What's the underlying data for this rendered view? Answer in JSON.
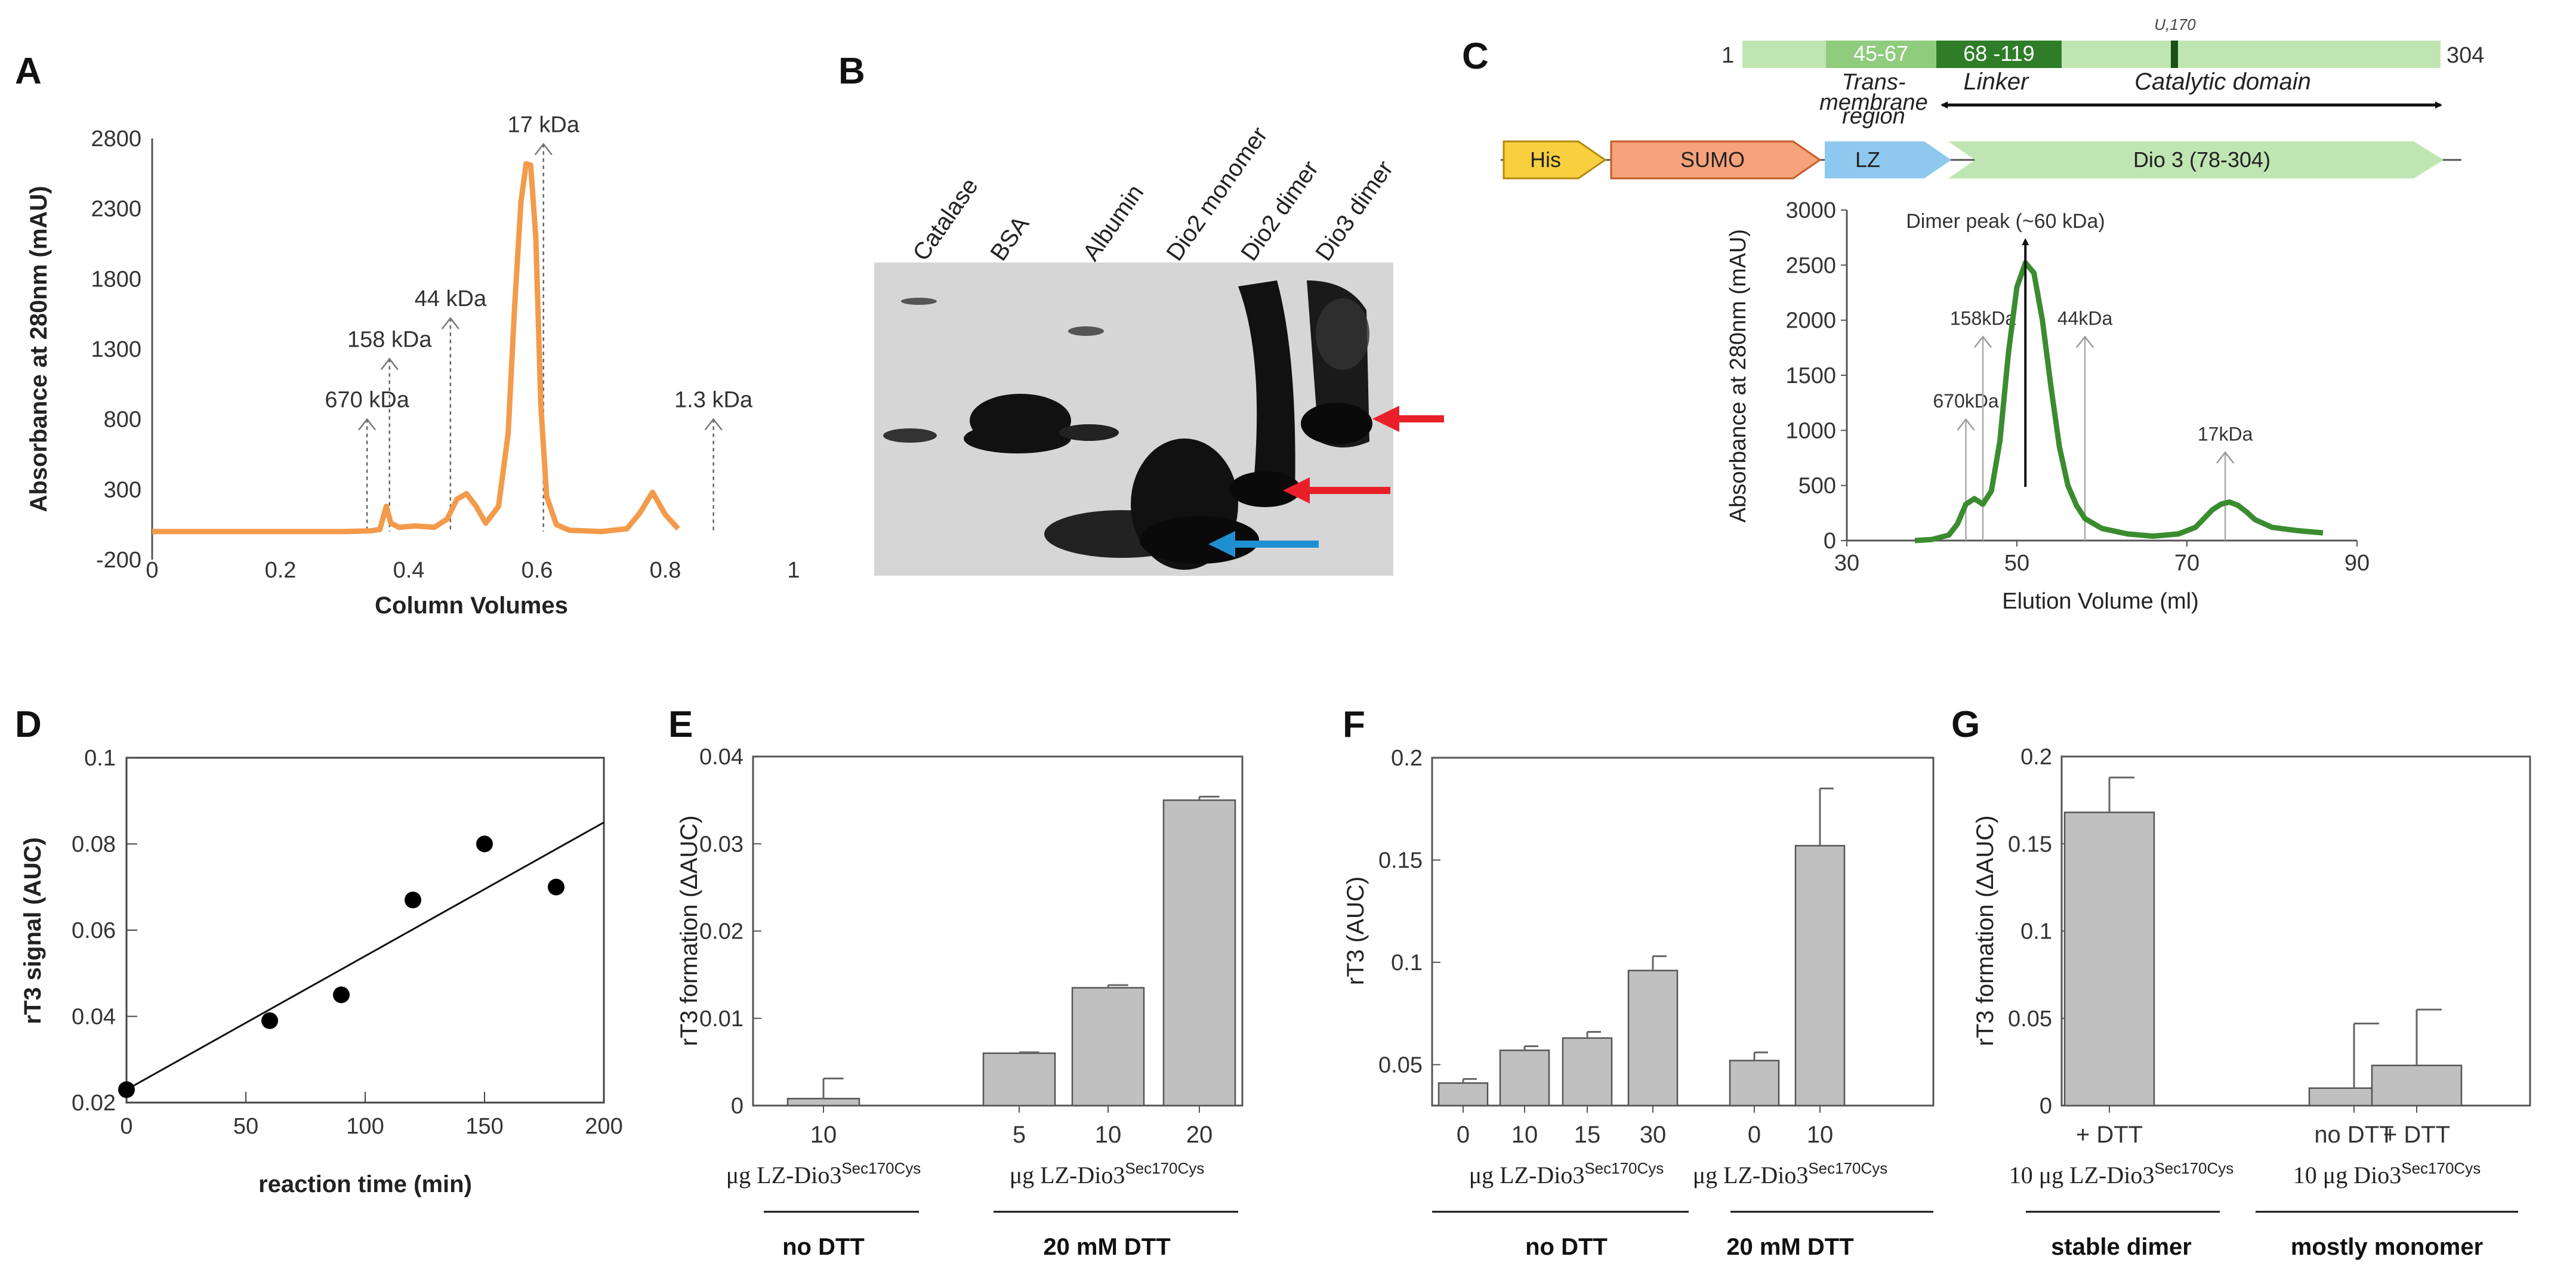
{
  "panels": {
    "A": "A",
    "B": "B",
    "C": "C",
    "D": "D",
    "E": "E",
    "F": "F",
    "G": "G"
  },
  "colors": {
    "orange": "#f39a4b",
    "green": "#3a8c2f",
    "bar": "#c0c0c0",
    "red": "#e8202a",
    "blue": "#1e90d2"
  },
  "chart_data": [
    {
      "id": "A",
      "type": "line",
      "xlabel": "Column Volumes",
      "ylabel": "Absorbance at 280nm (mAU)",
      "xlim": [
        0,
        1
      ],
      "ylim": [
        -200,
        2800
      ],
      "xticks": [
        "0",
        "0.2",
        "0.4",
        "0.6",
        "0.8",
        "1"
      ],
      "yticks": [
        "-200",
        "300",
        "800",
        "1300",
        "1800",
        "2300",
        "2800"
      ],
      "x": [
        0,
        0.1,
        0.2,
        0.3,
        0.34,
        0.355,
        0.365,
        0.372,
        0.385,
        0.41,
        0.44,
        0.46,
        0.475,
        0.49,
        0.505,
        0.52,
        0.54,
        0.555,
        0.565,
        0.575,
        0.583,
        0.59,
        0.598,
        0.606,
        0.615,
        0.63,
        0.65,
        0.7,
        0.74,
        0.76,
        0.78,
        0.8,
        0.82
      ],
      "y": [
        0,
        0,
        0,
        0,
        5,
        15,
        180,
        60,
        30,
        40,
        30,
        90,
        230,
        270,
        180,
        60,
        180,
        700,
        1600,
        2350,
        2620,
        2610,
        2100,
        900,
        250,
        50,
        10,
        0,
        20,
        130,
        280,
        120,
        20
      ],
      "markers": [
        {
          "label": "670 kDa",
          "x": 0.335,
          "top": 800
        },
        {
          "label": "158 kDa",
          "x": 0.37,
          "top": 1230
        },
        {
          "label": "44 kDa",
          "x": 0.465,
          "top": 1520
        },
        {
          "label": "17 kDa",
          "x": 0.61,
          "top": 2760
        },
        {
          "label": "1.3 kDa",
          "x": 0.875,
          "top": 800
        }
      ]
    },
    {
      "id": "C",
      "type": "line",
      "xlabel": "Elution Volume (ml)",
      "ylabel": "Absorbance at 280nm (mAU)",
      "xlim": [
        30,
        90
      ],
      "ylim": [
        0,
        3000
      ],
      "xticks": [
        "30",
        "50",
        "70",
        "90"
      ],
      "yticks": [
        "0",
        "500",
        "1000",
        "1500",
        "2000",
        "2500",
        "3000"
      ],
      "x": [
        38,
        40,
        42,
        43,
        44,
        45,
        46,
        47,
        48,
        49,
        50,
        51,
        52,
        53,
        54,
        55,
        56,
        57,
        58,
        60,
        63,
        66,
        69,
        71,
        72,
        73,
        74,
        75,
        76,
        77,
        78,
        80,
        83,
        86
      ],
      "y": [
        0,
        10,
        50,
        150,
        330,
        380,
        330,
        450,
        900,
        1700,
        2300,
        2520,
        2430,
        2000,
        1400,
        850,
        500,
        320,
        200,
        110,
        60,
        40,
        60,
        120,
        200,
        280,
        330,
        350,
        320,
        260,
        190,
        120,
        90,
        70
      ],
      "peak_label": "Dimer peak (~60 kDa)",
      "peak_x": 51,
      "markers": [
        {
          "label": "670kDa",
          "x": 44,
          "top": 1100
        },
        {
          "label": "158kDa",
          "x": 46,
          "top": 1850
        },
        {
          "label": "44kDa",
          "x": 58,
          "top": 1850
        },
        {
          "label": "17kDa",
          "x": 74.5,
          "top": 800
        }
      ]
    },
    {
      "id": "D",
      "type": "scatter",
      "xlabel": "reaction time (min)",
      "ylabel": "rT3 signal (AUC)",
      "xlim": [
        0,
        200
      ],
      "ylim": [
        0.02,
        0.1
      ],
      "xticks": [
        "0",
        "50",
        "100",
        "150",
        "200"
      ],
      "yticks": [
        "0.02",
        "0.04",
        "0.06",
        "0.08",
        "0.1"
      ],
      "x": [
        0,
        60,
        90,
        120,
        150,
        180
      ],
      "y": [
        0.023,
        0.039,
        0.045,
        0.067,
        0.08,
        0.07
      ],
      "fit": {
        "x": [
          0,
          200
        ],
        "y": [
          0.023,
          0.085
        ]
      }
    },
    {
      "id": "E",
      "type": "bar",
      "ylabel": "rT3 formation (ΔAUC)",
      "ylim": [
        0,
        0.04
      ],
      "yticks": [
        "0",
        "0.01",
        "0.02",
        "0.03",
        "0.04"
      ],
      "categories": [
        "10",
        "5",
        "10",
        "20"
      ],
      "values": [
        0.0008,
        0.006,
        0.0135,
        0.035
      ],
      "errors": [
        0.0023,
        0.0001,
        0.0003,
        0.0004
      ],
      "groups": [
        {
          "unit": "μg LZ-Dio3",
          "sup": "Sec170Cys",
          "condition": "no DTT"
        },
        {
          "unit": "μg LZ-Dio3",
          "sup": "Sec170Cys",
          "condition": "20 mM DTT"
        }
      ]
    },
    {
      "id": "F",
      "type": "bar",
      "ylabel": "rT3 (AUC)",
      "ylim": [
        0.03,
        0.2
      ],
      "yticks": [
        "0.05",
        "0.1",
        "0.15",
        "0.2"
      ],
      "categories": [
        "0",
        "10",
        "15",
        "30",
        "0",
        "10"
      ],
      "values": [
        0.041,
        0.057,
        0.063,
        0.096,
        0.052,
        0.157
      ],
      "errors": [
        0.002,
        0.002,
        0.003,
        0.007,
        0.004,
        0.028
      ],
      "groups": [
        {
          "unit": "μg LZ-Dio3",
          "sup": "Sec170Cys",
          "condition": "no DTT"
        },
        {
          "unit": "μg LZ-Dio3",
          "sup": "Sec170Cys",
          "condition": "20 mM DTT"
        }
      ]
    },
    {
      "id": "G",
      "type": "bar",
      "ylabel": "rT3 formation (ΔAUC)",
      "ylim": [
        0,
        0.2
      ],
      "yticks": [
        "0",
        "0.05",
        "0.1",
        "0.15",
        "0.2"
      ],
      "categories": [
        "+ DTT",
        "no DTT",
        "+ DTT"
      ],
      "values": [
        0.168,
        0.01,
        0.023
      ],
      "errors": [
        0.02,
        0.037,
        0.032
      ],
      "groups": [
        {
          "unit": "10 μg LZ-Dio3",
          "sup": "Sec170Cys",
          "condition": "stable dimer"
        },
        {
          "unit": "10 μg Dio3",
          "sup": "Sec170Cys",
          "condition": "mostly monomer"
        }
      ]
    }
  ],
  "gel": {
    "lanes": [
      "Catalase",
      "BSA",
      "Albumin",
      "Dio2 monomer",
      "Dio2 dimer",
      "Dio3 dimer"
    ]
  },
  "domain_map": {
    "start": "1",
    "end": "304",
    "u_label": "U,170",
    "seg1": "45-67",
    "seg2": "68 -119",
    "tm": [
      "Trans-",
      "membrane",
      "region"
    ],
    "linker": "Linker",
    "catalytic": "Catalytic domain"
  },
  "construct": {
    "his": "His",
    "sumo": "SUMO",
    "lz": "LZ",
    "dio3": "Dio 3 (78-304)"
  }
}
